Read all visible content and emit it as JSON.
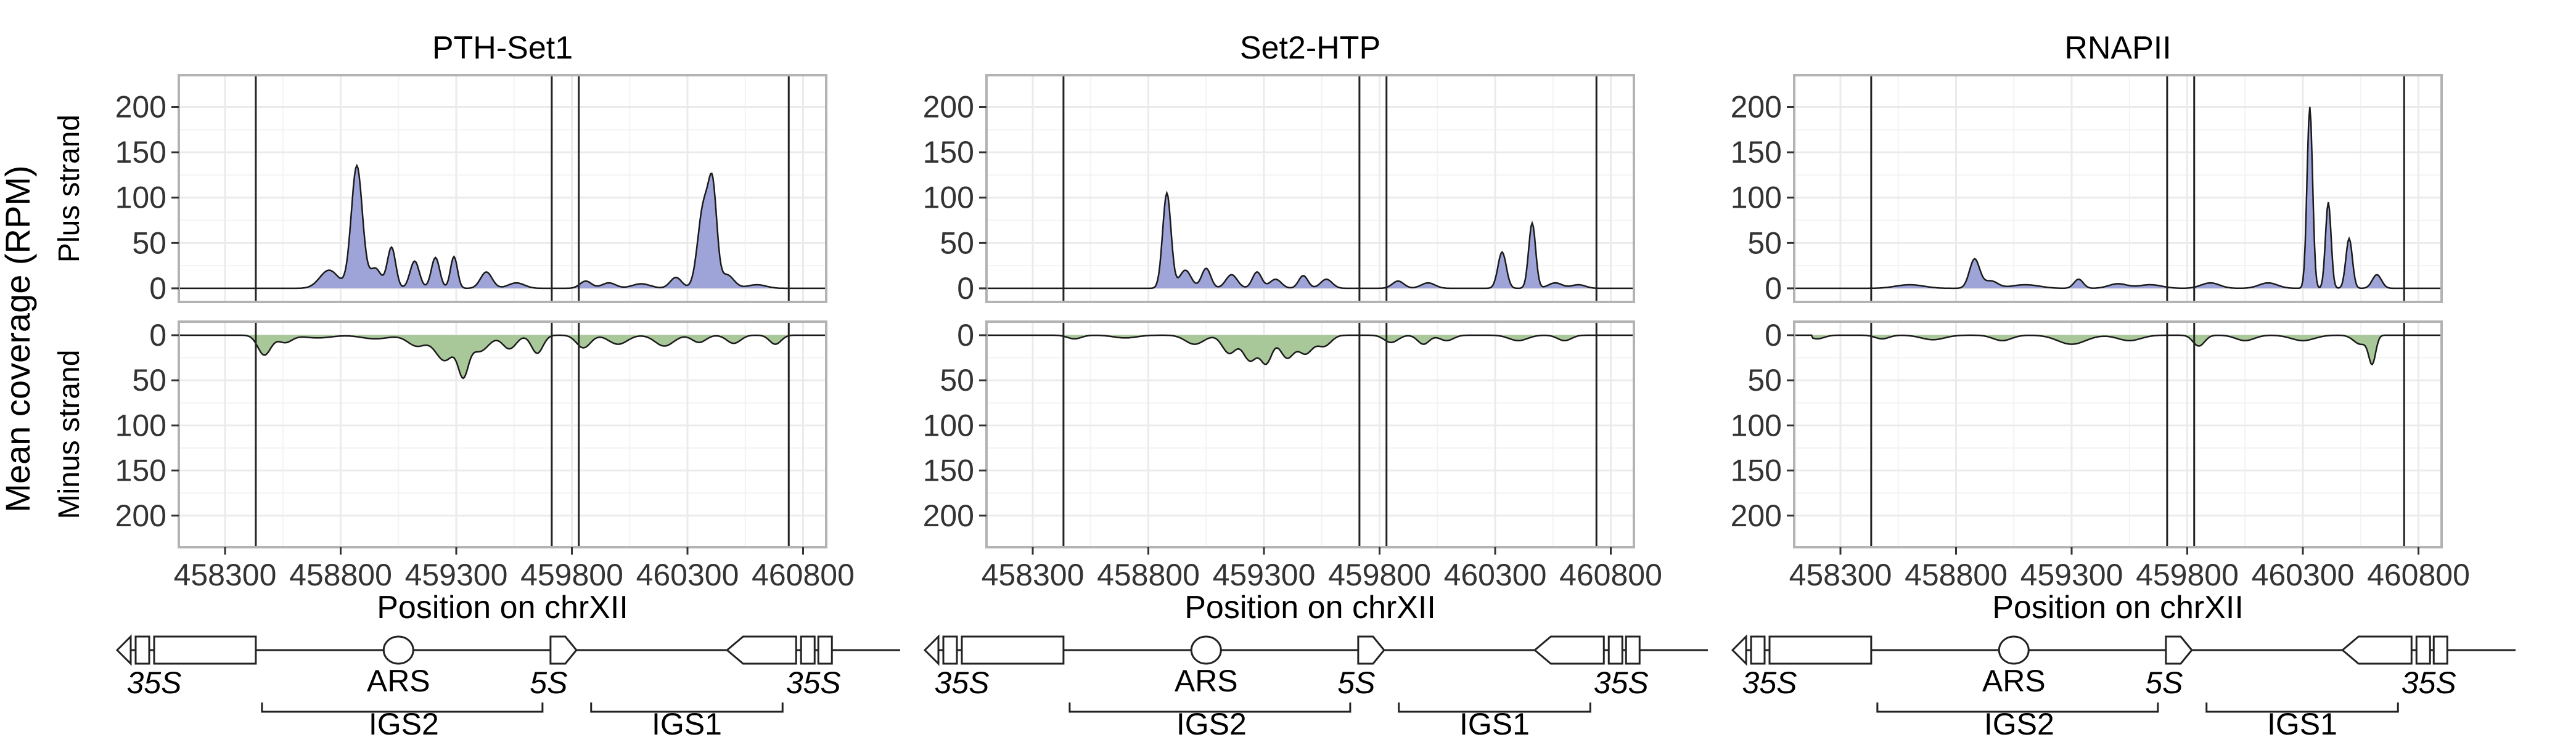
{
  "chart_data": {
    "type": "area",
    "ylabel": "Mean coverage (RPM)",
    "xlabel": "Position on chrXII",
    "xlim": [
      458100,
      460900
    ],
    "ylim": [
      0,
      220
    ],
    "x_ticks": [
      458300,
      458800,
      459300,
      459800,
      460300,
      460800
    ],
    "y_ticks": [
      0,
      50,
      100,
      150,
      200
    ],
    "strands": [
      "Plus strand",
      "Minus strand"
    ],
    "vertical_lines_x": [
      458433,
      459713,
      459830,
      460738
    ],
    "colors": {
      "plus": "#9fa4d8",
      "minus": "#a9c89a",
      "line": "#1a1a1a",
      "grid": "#ebebeb",
      "panel_border": "#b3b3b3"
    },
    "facets": [
      {
        "title": "PTH-Set1",
        "plus_peaks": [
          [
            458750,
            20,
            40
          ],
          [
            458870,
            135,
            24
          ],
          [
            458950,
            22,
            25
          ],
          [
            459020,
            45,
            18
          ],
          [
            459120,
            30,
            20
          ],
          [
            459210,
            34,
            18
          ],
          [
            459290,
            35,
            15
          ],
          [
            459430,
            18,
            25
          ],
          [
            459560,
            6,
            35
          ],
          [
            459860,
            8,
            25
          ],
          [
            459960,
            6,
            30
          ],
          [
            460100,
            5,
            40
          ],
          [
            460250,
            12,
            25
          ],
          [
            460370,
            90,
            25
          ],
          [
            460410,
            95,
            18
          ],
          [
            460470,
            15,
            30
          ],
          [
            460600,
            4,
            40
          ]
        ],
        "minus_peaks": [
          [
            458470,
            22,
            28
          ],
          [
            458560,
            8,
            30
          ],
          [
            458700,
            3,
            60
          ],
          [
            458950,
            4,
            60
          ],
          [
            459130,
            12,
            40
          ],
          [
            459250,
            28,
            40
          ],
          [
            459330,
            40,
            22
          ],
          [
            459400,
            18,
            40
          ],
          [
            459530,
            15,
            30
          ],
          [
            459650,
            20,
            25
          ],
          [
            459850,
            14,
            30
          ],
          [
            460000,
            10,
            40
          ],
          [
            460200,
            12,
            40
          ],
          [
            460350,
            8,
            30
          ],
          [
            460500,
            9,
            30
          ],
          [
            460680,
            10,
            25
          ]
        ]
      },
      {
        "title": "Set2-HTP",
        "plus_peaks": [
          [
            458880,
            105,
            18
          ],
          [
            458960,
            20,
            25
          ],
          [
            459050,
            22,
            20
          ],
          [
            459160,
            15,
            25
          ],
          [
            459270,
            18,
            20
          ],
          [
            459350,
            10,
            25
          ],
          [
            459470,
            14,
            20
          ],
          [
            459570,
            10,
            25
          ],
          [
            459880,
            8,
            25
          ],
          [
            460010,
            6,
            30
          ],
          [
            460330,
            40,
            18
          ],
          [
            460460,
            72,
            15
          ],
          [
            460560,
            6,
            30
          ],
          [
            460660,
            4,
            30
          ]
        ],
        "minus_peaks": [
          [
            458480,
            4,
            30
          ],
          [
            458700,
            3,
            50
          ],
          [
            459000,
            10,
            40
          ],
          [
            459150,
            20,
            30
          ],
          [
            459240,
            28,
            30
          ],
          [
            459310,
            30,
            25
          ],
          [
            459400,
            25,
            30
          ],
          [
            459480,
            20,
            30
          ],
          [
            459560,
            12,
            30
          ],
          [
            459850,
            8,
            30
          ],
          [
            459990,
            10,
            25
          ],
          [
            460090,
            6,
            30
          ],
          [
            460400,
            6,
            40
          ],
          [
            460600,
            6,
            30
          ]
        ]
      },
      {
        "title": "RNAPII",
        "plus_peaks": [
          [
            458600,
            4,
            60
          ],
          [
            458880,
            32,
            22
          ],
          [
            458950,
            8,
            30
          ],
          [
            459100,
            4,
            60
          ],
          [
            459330,
            10,
            20
          ],
          [
            459500,
            5,
            40
          ],
          [
            459640,
            4,
            50
          ],
          [
            459900,
            6,
            40
          ],
          [
            460150,
            6,
            40
          ],
          [
            460330,
            200,
            12
          ],
          [
            460410,
            95,
            12
          ],
          [
            460500,
            55,
            14
          ],
          [
            460620,
            15,
            20
          ]
        ],
        "minus_peaks": [
          [
            458200,
            4,
            30
          ],
          [
            458480,
            4,
            30
          ],
          [
            458700,
            5,
            50
          ],
          [
            459000,
            6,
            40
          ],
          [
            459300,
            10,
            60
          ],
          [
            459550,
            6,
            50
          ],
          [
            459850,
            12,
            25
          ],
          [
            460050,
            6,
            40
          ],
          [
            460300,
            6,
            50
          ],
          [
            460600,
            30,
            15
          ],
          [
            460550,
            10,
            30
          ]
        ]
      }
    ]
  },
  "gene_map": {
    "labels": {
      "rdna_35s": "35S",
      "ars": "ARS",
      "rdna_5s": "5S",
      "igs2": "IGS2",
      "igs1": "IGS1"
    }
  }
}
